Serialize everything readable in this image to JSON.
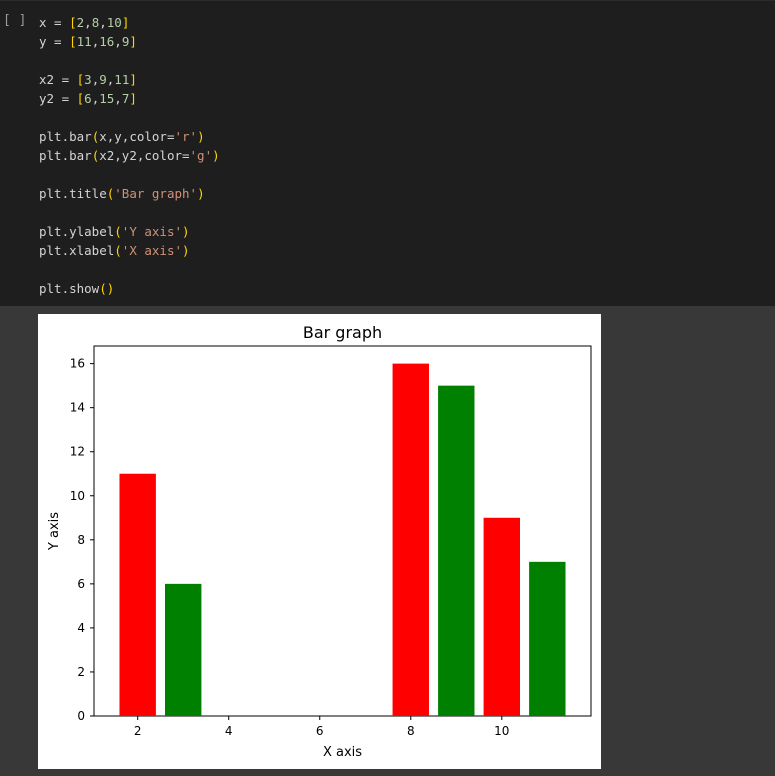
{
  "cell": {
    "run_indicator": "[ ]",
    "code_lines": [
      [
        {
          "t": "x = "
        },
        {
          "t": "[",
          "c": "br"
        },
        {
          "t": "2",
          "c": "num"
        },
        {
          "t": ","
        },
        {
          "t": "8",
          "c": "num"
        },
        {
          "t": ","
        },
        {
          "t": "10",
          "c": "num"
        },
        {
          "t": "]",
          "c": "br"
        }
      ],
      [
        {
          "t": "y = "
        },
        {
          "t": "[",
          "c": "br"
        },
        {
          "t": "11",
          "c": "num"
        },
        {
          "t": ","
        },
        {
          "t": "16",
          "c": "num"
        },
        {
          "t": ","
        },
        {
          "t": "9",
          "c": "num"
        },
        {
          "t": "]",
          "c": "br"
        }
      ],
      [],
      [
        {
          "t": "x2 = "
        },
        {
          "t": "[",
          "c": "br"
        },
        {
          "t": "3",
          "c": "num"
        },
        {
          "t": ","
        },
        {
          "t": "9",
          "c": "num"
        },
        {
          "t": ","
        },
        {
          "t": "11",
          "c": "num"
        },
        {
          "t": "]",
          "c": "br"
        }
      ],
      [
        {
          "t": "y2 = "
        },
        {
          "t": "[",
          "c": "br"
        },
        {
          "t": "6",
          "c": "num"
        },
        {
          "t": ","
        },
        {
          "t": "15",
          "c": "num"
        },
        {
          "t": ","
        },
        {
          "t": "7",
          "c": "num"
        },
        {
          "t": "]",
          "c": "br"
        }
      ],
      [],
      [
        {
          "t": "plt.bar"
        },
        {
          "t": "(",
          "c": "br"
        },
        {
          "t": "x,y,color="
        },
        {
          "t": "'r'",
          "c": "str"
        },
        {
          "t": ")",
          "c": "br"
        }
      ],
      [
        {
          "t": "plt.bar"
        },
        {
          "t": "(",
          "c": "br"
        },
        {
          "t": "x2,y2,color="
        },
        {
          "t": "'g'",
          "c": "str"
        },
        {
          "t": ")",
          "c": "br"
        }
      ],
      [],
      [
        {
          "t": "plt.title"
        },
        {
          "t": "(",
          "c": "br"
        },
        {
          "t": "'Bar graph'",
          "c": "str"
        },
        {
          "t": ")",
          "c": "br"
        }
      ],
      [],
      [
        {
          "t": "plt.ylabel"
        },
        {
          "t": "(",
          "c": "br"
        },
        {
          "t": "'Y axis'",
          "c": "str"
        },
        {
          "t": ")",
          "c": "br"
        }
      ],
      [
        {
          "t": "plt.xlabel"
        },
        {
          "t": "(",
          "c": "br"
        },
        {
          "t": "'X axis'",
          "c": "str"
        },
        {
          "t": ")",
          "c": "br"
        }
      ],
      [],
      [
        {
          "t": "plt.show"
        },
        {
          "t": "()",
          "c": "br"
        }
      ]
    ]
  },
  "chart_data": {
    "type": "bar",
    "title": "Bar graph",
    "xlabel": "X axis",
    "ylabel": "Y axis",
    "xlim": [
      1.04,
      11.96
    ],
    "ylim": [
      0,
      16.8
    ],
    "xticks": [
      2,
      4,
      6,
      8,
      10
    ],
    "yticks": [
      0,
      2,
      4,
      6,
      8,
      10,
      12,
      14,
      16
    ],
    "bar_width": 0.8,
    "grid": false,
    "series": [
      {
        "color": "#ff0000",
        "x": [
          2,
          8,
          10
        ],
        "y": [
          11,
          16,
          9
        ]
      },
      {
        "color": "#008000",
        "x": [
          3,
          9,
          11
        ],
        "y": [
          6,
          15,
          7
        ]
      }
    ]
  }
}
